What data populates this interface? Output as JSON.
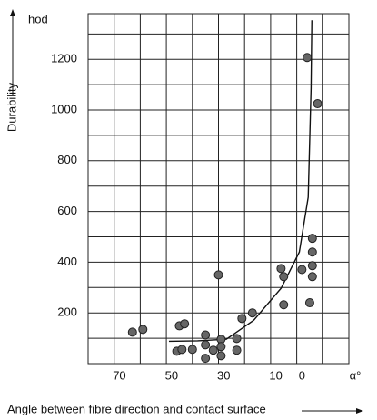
{
  "chart_data": {
    "type": "scatter",
    "y_unit": "hod",
    "y_label": "Durability",
    "x_unit": "α°",
    "x_label": "Angle between fibre direction and contact surface",
    "xlim": [
      82,
      -18
    ],
    "ylim": [
      0,
      1380
    ],
    "xticks": [
      70,
      50,
      30,
      10,
      0
    ],
    "yticks": [
      200,
      400,
      600,
      800,
      1000,
      1200
    ],
    "grid": true,
    "color": "#666666",
    "points": {
      "x": [
        65,
        61,
        47,
        45,
        48,
        46,
        42,
        37,
        37,
        34,
        37,
        31,
        31,
        31,
        25,
        25,
        32,
        23,
        19,
        8,
        7,
        7,
        0,
        -2,
        -6,
        -4,
        -4,
        -4,
        -4,
        -3
      ],
      "values": [
        124,
        135,
        149,
        157,
        49,
        56,
        56,
        113,
        74,
        53,
        21,
        96,
        67,
        31,
        99,
        53,
        350,
        178,
        200,
        375,
        343,
        232,
        371,
        1207,
        1025,
        494,
        440,
        386,
        343,
        240
      ]
    },
    "curve": {
      "color": "#111111",
      "x": [
        51,
        40,
        29,
        18.5,
        8,
        1,
        -2.4,
        -3.5,
        -3.8
      ],
      "values": [
        88,
        90,
        96,
        171,
        297,
        440,
        656,
        1086,
        1354
      ]
    }
  }
}
